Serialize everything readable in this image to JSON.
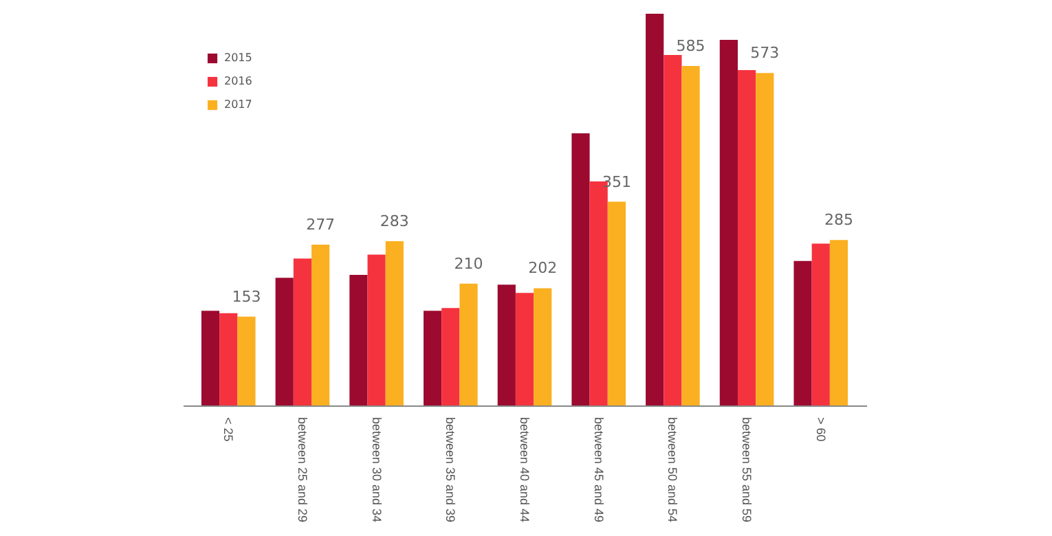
{
  "chart_data": {
    "type": "bar",
    "categories": [
      "< 25",
      "between 25 and 29",
      "between 30 and 34",
      "between 35 and 39",
      "between 40 and 44",
      "between 45 and 49",
      "between 50 and 54",
      "between 55 and 59",
      "> 60"
    ],
    "series": [
      {
        "name": "2015",
        "color": "#9c0a30",
        "values": [
          163,
          220,
          225,
          163,
          208,
          469,
          675,
          630,
          249
        ]
      },
      {
        "name": "2016",
        "color": "#f5333f",
        "values": [
          159,
          253,
          260,
          168,
          194,
          386,
          604,
          578,
          279
        ]
      },
      {
        "name": "2017",
        "color": "#fbb021",
        "values": [
          153,
          277,
          283,
          210,
          202,
          351,
          585,
          573,
          285
        ],
        "value_labels": [
          "153",
          "277",
          "283",
          "210",
          "202",
          "351",
          "585",
          "573",
          "285"
        ]
      }
    ],
    "legend": "top left",
    "grid": false
  }
}
